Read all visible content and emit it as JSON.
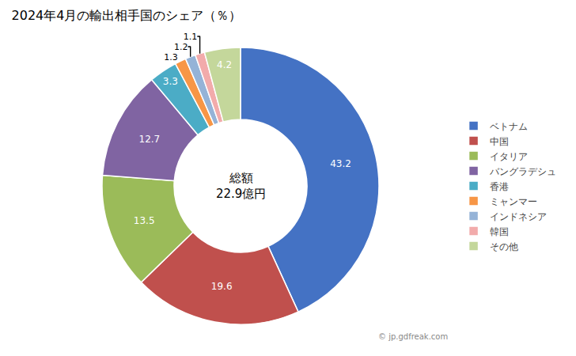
{
  "chart_data": {
    "type": "donut",
    "title": "2024年4月の輸出相手国のシェア（％）",
    "categories": [
      "ベトナム",
      "中国",
      "イタリア",
      "バングラデシュ",
      "香港",
      "ミャンマー",
      "インドネシア",
      "韓国",
      "その他"
    ],
    "values": [
      43.2,
      19.6,
      13.5,
      12.7,
      3.3,
      1.3,
      1.2,
      1.1,
      4.2
    ],
    "colors": [
      "#4472C4",
      "#C0504D",
      "#9BBB59",
      "#8064A2",
      "#4BACC6",
      "#F79646",
      "#95B3D7",
      "#F2ABAB",
      "#C4D79B"
    ],
    "data_labels": true,
    "legend": "right",
    "annotations": [
      "総額",
      "22.9億円",
      "© jp.gdfreak.com"
    ]
  }
}
